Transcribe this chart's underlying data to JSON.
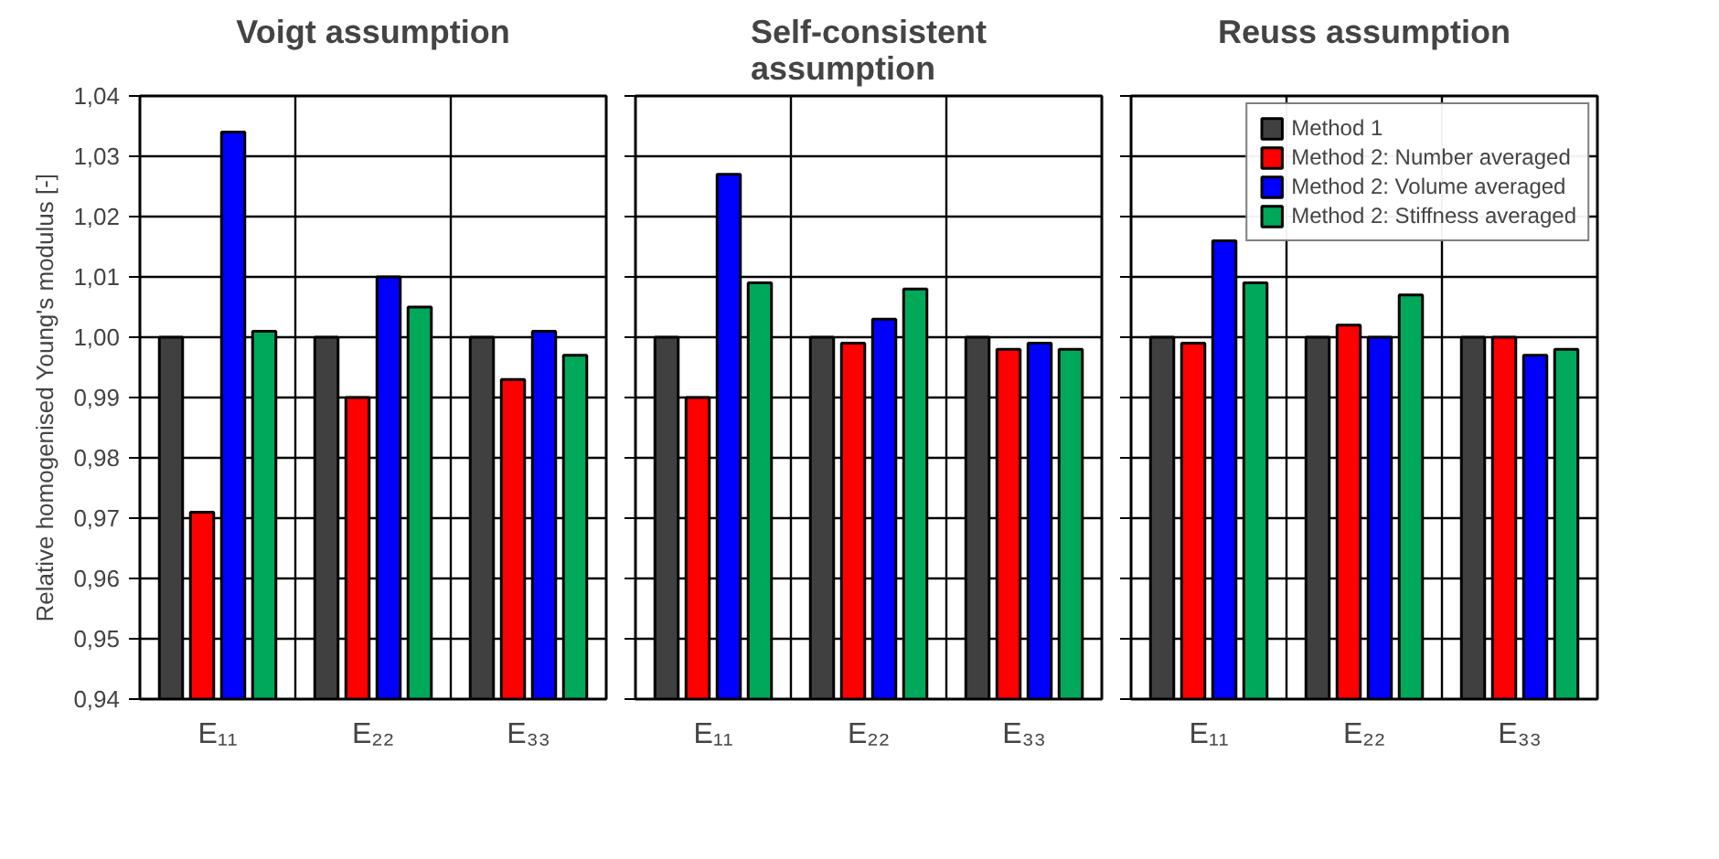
{
  "chart_data": [
    {
      "type": "bar",
      "title": "Voigt assumption",
      "ylabel": "Relative homogenised Young's modulus [-]",
      "categories": [
        "E₁₁",
        "E₂₂",
        "E₃₃"
      ],
      "series": [
        {
          "color": "#404040",
          "values": [
            1.0,
            1.0,
            1.0
          ]
        },
        {
          "color": "#ff0000",
          "values": [
            0.971,
            0.99,
            0.993
          ]
        },
        {
          "color": "#0000ff",
          "values": [
            1.034,
            1.01,
            1.001
          ]
        },
        {
          "color": "#00a85a",
          "values": [
            1.001,
            1.005,
            0.997
          ]
        }
      ],
      "ylim": [
        0.94,
        1.04
      ],
      "yticks": [
        {
          "value": 0.94,
          "label": "0,94"
        },
        {
          "value": 0.95,
          "label": "0,95"
        },
        {
          "value": 0.96,
          "label": "0,96"
        },
        {
          "value": 0.97,
          "label": "0,97"
        },
        {
          "value": 0.98,
          "label": "0,98"
        },
        {
          "value": 0.99,
          "label": "0,99"
        },
        {
          "value": 1.0,
          "label": "1,00"
        },
        {
          "value": 1.01,
          "label": "1,01"
        },
        {
          "value": 1.02,
          "label": "1,02"
        },
        {
          "value": 1.03,
          "label": "1,03"
        },
        {
          "value": 1.04,
          "label": "1,04"
        }
      ],
      "grid": true
    },
    {
      "type": "bar",
      "title": "Self-consistent assumption",
      "categories": [
        "E₁₁",
        "E₂₂",
        "E₃₃"
      ],
      "series": [
        {
          "color": "#404040",
          "values": [
            1.0,
            1.0,
            1.0
          ]
        },
        {
          "color": "#ff0000",
          "values": [
            0.99,
            0.999,
            0.998
          ]
        },
        {
          "color": "#0000ff",
          "values": [
            1.027,
            1.003,
            0.999
          ]
        },
        {
          "color": "#00a85a",
          "values": [
            1.009,
            1.008,
            0.998
          ]
        }
      ],
      "ylim": [
        0.94,
        1.04
      ],
      "yticks": [
        {
          "value": 0.94,
          "label": null
        },
        {
          "value": 0.95,
          "label": null
        },
        {
          "value": 0.96,
          "label": null
        },
        {
          "value": 0.97,
          "label": null
        },
        {
          "value": 0.98,
          "label": null
        },
        {
          "value": 0.99,
          "label": null
        },
        {
          "value": 1.0,
          "label": null
        },
        {
          "value": 1.01,
          "label": null
        },
        {
          "value": 1.02,
          "label": null
        },
        {
          "value": 1.03,
          "label": null
        },
        {
          "value": 1.04,
          "label": null
        }
      ],
      "grid": true,
      "tick_labels": "x"
    },
    {
      "type": "bar",
      "title": "Reuss assumption",
      "categories": [
        "E₁₁",
        "E₂₂",
        "E₃₃"
      ],
      "series": [
        {
          "name": "Method 1",
          "color": "#404040",
          "values": [
            1.0,
            1.0,
            1.0
          ]
        },
        {
          "name": "Method 2: Number averaged",
          "color": "#ff0000",
          "values": [
            0.999,
            1.002,
            1.0
          ]
        },
        {
          "name": "Method 2: Volume averaged",
          "color": "#0000ff",
          "values": [
            1.016,
            1.0,
            0.997
          ]
        },
        {
          "name": "Method 2: Stiffness averaged",
          "color": "#00a85a",
          "values": [
            1.009,
            1.007,
            0.998
          ]
        }
      ],
      "ylim": [
        0.94,
        1.04
      ],
      "yticks": [
        {
          "value": 0.94,
          "label": null
        },
        {
          "value": 0.95,
          "label": null
        },
        {
          "value": 0.96,
          "label": null
        },
        {
          "value": 0.97,
          "label": null
        },
        {
          "value": 0.98,
          "label": null
        },
        {
          "value": 0.99,
          "label": null
        },
        {
          "value": 1.0,
          "label": null
        },
        {
          "value": 1.01,
          "label": null
        },
        {
          "value": 1.02,
          "label": null
        },
        {
          "value": 1.03,
          "label": null
        },
        {
          "value": 1.04,
          "label": null
        }
      ],
      "grid": true,
      "legend": "top right",
      "tick_labels": "x"
    }
  ]
}
